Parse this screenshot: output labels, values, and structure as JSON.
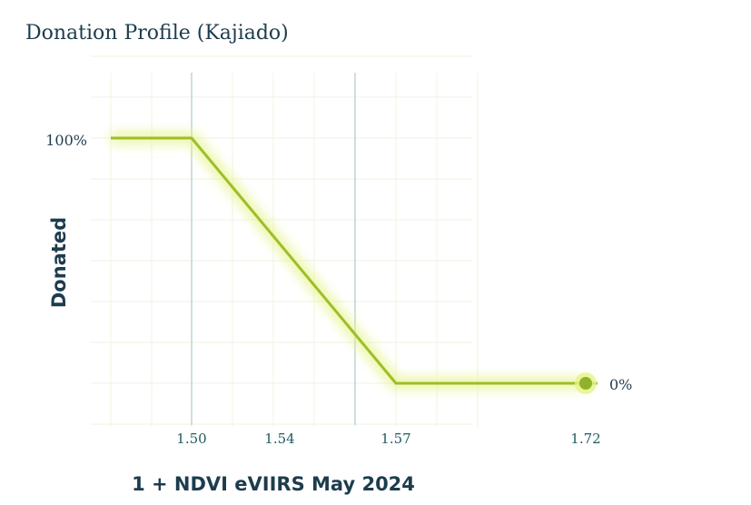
{
  "title": "Donation Profile (Kajiado)",
  "colors": {
    "line": "#9cbf27",
    "glow": "#e6f38a",
    "grid": "#f2f5e6",
    "threshold_line": "#b9d3d2",
    "text": "#1d3c4e"
  },
  "chart_data": {
    "type": "line",
    "title": "Donation Profile (Kajiado)",
    "xlabel": "1 + NDVI eVIIRS May 2024",
    "ylabel": "Donated",
    "x_tick_labels": [
      "1.50",
      "1.54",
      "1.57",
      "1.72"
    ],
    "y_tick_labels": [
      "100%",
      "0%"
    ],
    "series": [
      {
        "x": [
          1.47,
          1.5,
          1.57,
          1.72
        ],
        "y": [
          100,
          100,
          0,
          0
        ]
      }
    ],
    "end_marker": {
      "x": 1.72,
      "y": 0
    },
    "threshold_lines_x": [
      1.5,
      1.56
    ],
    "xlim": [
      1.47,
      1.72
    ],
    "ylim": [
      0,
      100
    ],
    "grid": true
  }
}
